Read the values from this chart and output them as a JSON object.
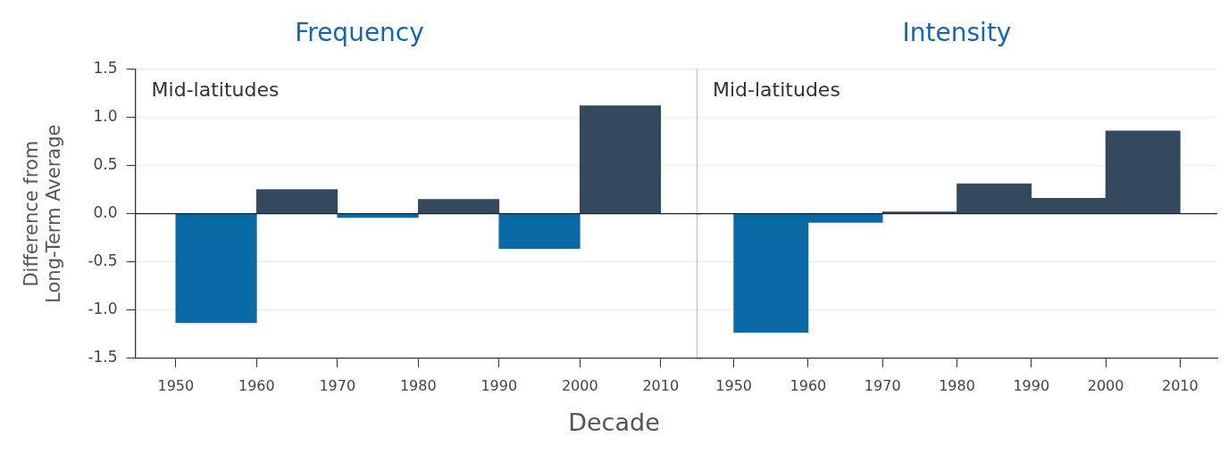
{
  "chart_data": [
    {
      "type": "histogram",
      "title": "Frequency",
      "ylabel": "Difference from Long-Term Average",
      "xlabel": "Decade",
      "annotations": [
        "Mid-latitudes"
      ],
      "bins": [
        1950,
        1960,
        1970,
        1980,
        1990,
        2000,
        2010
      ],
      "values": [
        -1.13,
        0.25,
        -0.04,
        0.15,
        -0.36,
        1.12
      ],
      "colors": [
        "#0a6aa6",
        "#34495e",
        "#0a6aa6",
        "#34495e",
        "#0a6aa6",
        "#34495e"
      ],
      "xlim": [
        1945,
        2015
      ],
      "xticks": [
        1950,
        1960,
        1970,
        1980,
        1990,
        2000,
        2010
      ],
      "ylim": [
        -1.5,
        1.5
      ],
      "yticks": [
        {
          "value": -1.5,
          "label": "-1.5"
        },
        {
          "value": -1,
          "label": "-1.0"
        },
        {
          "value": -0.5,
          "label": "-0.5"
        },
        {
          "value": 0,
          "label": "0.0"
        },
        {
          "value": 0.5,
          "label": "0.5"
        },
        {
          "value": 1,
          "label": "1.0"
        },
        {
          "value": 1.5,
          "label": "1.5"
        }
      ],
      "ref_lines": [
        {
          "axis": "y",
          "value": 0,
          "color": "#222222"
        }
      ],
      "grid": "y",
      "legend": false
    },
    {
      "type": "histogram",
      "title": "Intensity",
      "annotations": [
        "Mid-latitudes"
      ],
      "bins": [
        1950,
        1960,
        1970,
        1980,
        1990,
        2000,
        2010
      ],
      "values": [
        -1.23,
        -0.09,
        0.02,
        0.31,
        0.16,
        0.86
      ],
      "colors": [
        "#0a6aa6",
        "#0a6aa6",
        "#34495e",
        "#34495e",
        "#34495e",
        "#34495e"
      ],
      "xlim": [
        1945,
        2015
      ],
      "xticks": [
        1950,
        1960,
        1970,
        1980,
        1990,
        2000,
        2010
      ],
      "ylim": [
        -1.5,
        1.5
      ],
      "yticks": [
        -1.5,
        -1,
        -0.5,
        0,
        0.5,
        1,
        1.5
      ],
      "ref_lines": [
        {
          "axis": "y",
          "value": 0,
          "color": "#222222"
        }
      ],
      "grid": "y",
      "legend": false,
      "tick_labels": "x"
    }
  ]
}
